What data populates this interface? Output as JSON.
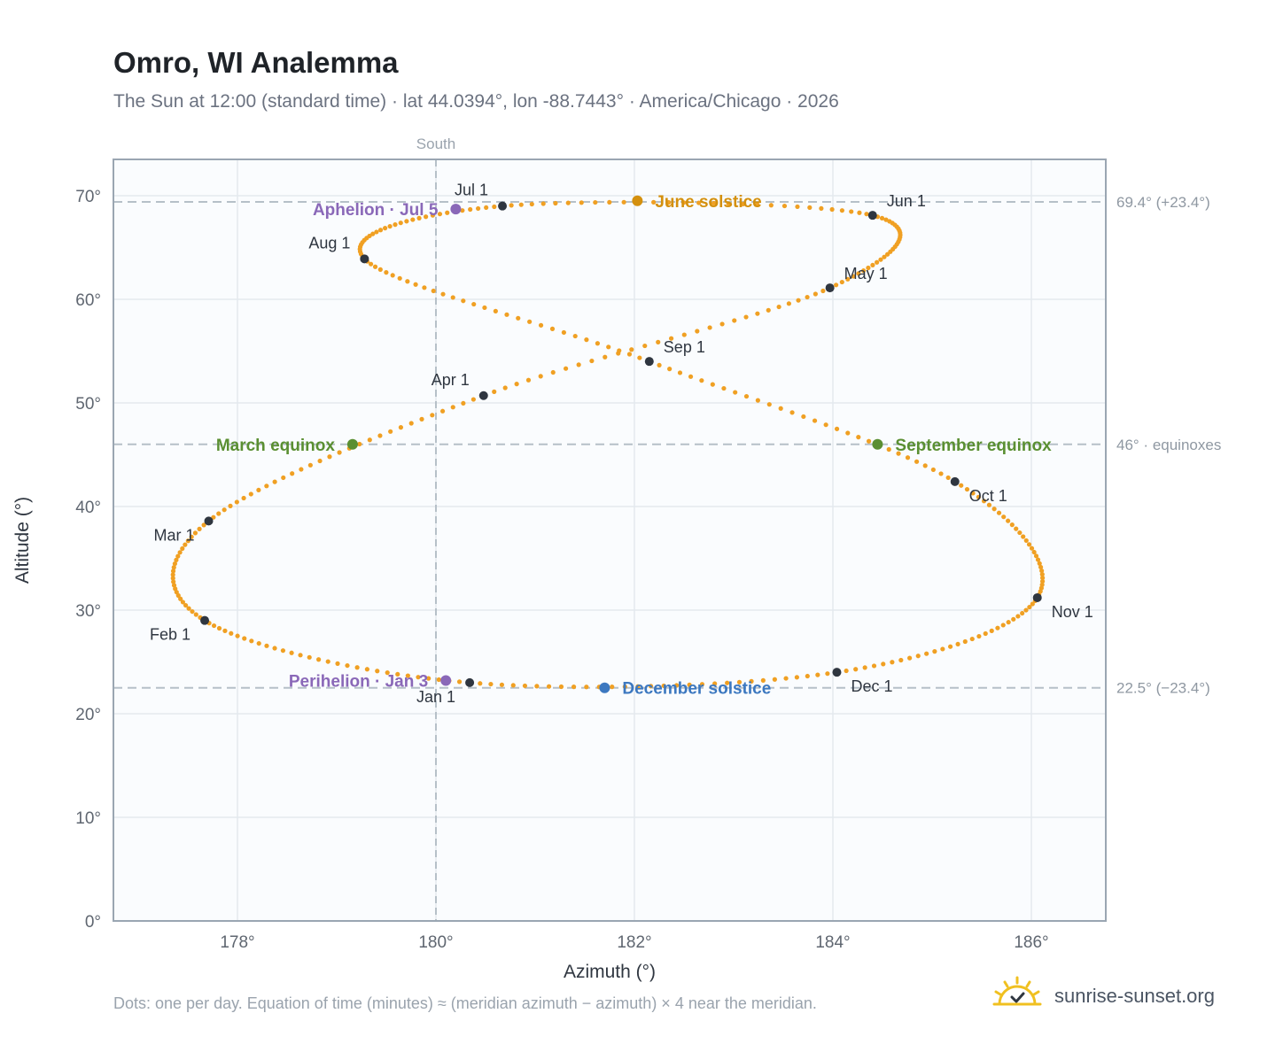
{
  "title": "Omro, WI Analemma",
  "subtitle": "The Sun at 12:00 (standard time) · lat 44.0394°, lon -88.7443° · America/Chicago · 2026",
  "footnote": "Dots: one per day. Equation of time (minutes) ≈ (meridian azimuth − azimuth) × 4 near the meridian.",
  "brand": "sunrise-sunset.org",
  "colors": {
    "path": "#f0a023",
    "month_marker": "#2f3640",
    "june_solstice": "#d4900e",
    "december_solstice": "#3c78c0",
    "equinox": "#5a8f32",
    "apsis": "#8a68b8",
    "reference_line": "#b6c0c8",
    "plot_bg": "#fafcfe",
    "grid": "#e4e9ee",
    "axis_text": "#5f6670"
  },
  "chart_data": {
    "type": "scatter",
    "xlabel": "Azimuth (°)",
    "ylabel": "Altitude (°)",
    "xlim": [
      176.75,
      186.75
    ],
    "ylim": [
      0,
      73.5
    ],
    "x_ticks": [
      178,
      180,
      182,
      184,
      186
    ],
    "x_tick_labels": [
      "178°",
      "180°",
      "182°",
      "184°",
      "186°"
    ],
    "y_ticks": [
      0,
      10,
      20,
      30,
      40,
      50,
      60,
      70
    ],
    "y_tick_labels": [
      "0°",
      "10°",
      "20°",
      "30°",
      "40°",
      "50°",
      "60°",
      "70°"
    ],
    "grid": true,
    "south_line": {
      "x": 180,
      "label": "South"
    },
    "reference_lines": [
      {
        "y": 69.4,
        "label": "69.4° (+23.4°)"
      },
      {
        "y": 46.0,
        "label": "46° · equinoxes"
      },
      {
        "y": 22.5,
        "label": "22.5° (−23.4°)"
      }
    ],
    "path_anchors": [
      {
        "day": 1,
        "az": 180.34,
        "alt": 23.0
      },
      {
        "day": 32,
        "az": 177.67,
        "alt": 29.0
      },
      {
        "day": 60,
        "az": 177.71,
        "alt": 38.6
      },
      {
        "day": 91,
        "az": 180.48,
        "alt": 50.7
      },
      {
        "day": 121,
        "az": 183.97,
        "alt": 61.1
      },
      {
        "day": 152,
        "az": 184.4,
        "alt": 68.1
      },
      {
        "day": 182,
        "az": 180.67,
        "alt": 69.0
      },
      {
        "day": 213,
        "az": 179.28,
        "alt": 63.9
      },
      {
        "day": 244,
        "az": 182.15,
        "alt": 54.0
      },
      {
        "day": 274,
        "az": 185.23,
        "alt": 42.4
      },
      {
        "day": 305,
        "az": 186.06,
        "alt": 31.2
      },
      {
        "day": 335,
        "az": 184.04,
        "alt": 24.0
      },
      {
        "day": 366,
        "az": 180.34,
        "alt": 23.0
      }
    ],
    "month_markers": [
      {
        "label": "Jan 1",
        "az": 180.34,
        "alt": 23.0,
        "pos": "below-left"
      },
      {
        "label": "Feb 1",
        "az": 177.67,
        "alt": 29.0,
        "pos": "below-left"
      },
      {
        "label": "Mar 1",
        "az": 177.71,
        "alt": 38.6,
        "pos": "below-left"
      },
      {
        "label": "Apr 1",
        "az": 180.48,
        "alt": 50.7,
        "pos": "above-left"
      },
      {
        "label": "May 1",
        "az": 183.97,
        "alt": 61.1,
        "pos": "above-right"
      },
      {
        "label": "Jun 1",
        "az": 184.4,
        "alt": 68.1,
        "pos": "above-right"
      },
      {
        "label": "Jul 1",
        "az": 180.67,
        "alt": 69.0,
        "pos": "above-left"
      },
      {
        "label": "Aug 1",
        "az": 179.28,
        "alt": 63.9,
        "pos": "above-left"
      },
      {
        "label": "Sep 1",
        "az": 182.15,
        "alt": 54.0,
        "pos": "above-right"
      },
      {
        "label": "Oct 1",
        "az": 185.23,
        "alt": 42.4,
        "pos": "below-right"
      },
      {
        "label": "Nov 1",
        "az": 186.06,
        "alt": 31.2,
        "pos": "below-right"
      },
      {
        "label": "Dec 1",
        "az": 184.04,
        "alt": 24.0,
        "pos": "below-right"
      }
    ],
    "events": [
      {
        "label": "June solstice",
        "az": 182.03,
        "alt": 69.5,
        "color_key": "june_solstice",
        "pos": "right"
      },
      {
        "label": "December solstice",
        "az": 181.7,
        "alt": 22.5,
        "color_key": "december_solstice",
        "pos": "right"
      },
      {
        "label": "March equinox",
        "az": 179.16,
        "alt": 46.0,
        "color_key": "equinox",
        "pos": "left"
      },
      {
        "label": "September equinox",
        "az": 184.45,
        "alt": 46.0,
        "color_key": "equinox",
        "pos": "right"
      },
      {
        "label": "Aphelion · Jul 5",
        "az": 180.2,
        "alt": 68.7,
        "color_key": "apsis",
        "pos": "left"
      },
      {
        "label": "Perihelion · Jan 3",
        "az": 180.1,
        "alt": 23.2,
        "color_key": "apsis",
        "pos": "left"
      }
    ]
  }
}
